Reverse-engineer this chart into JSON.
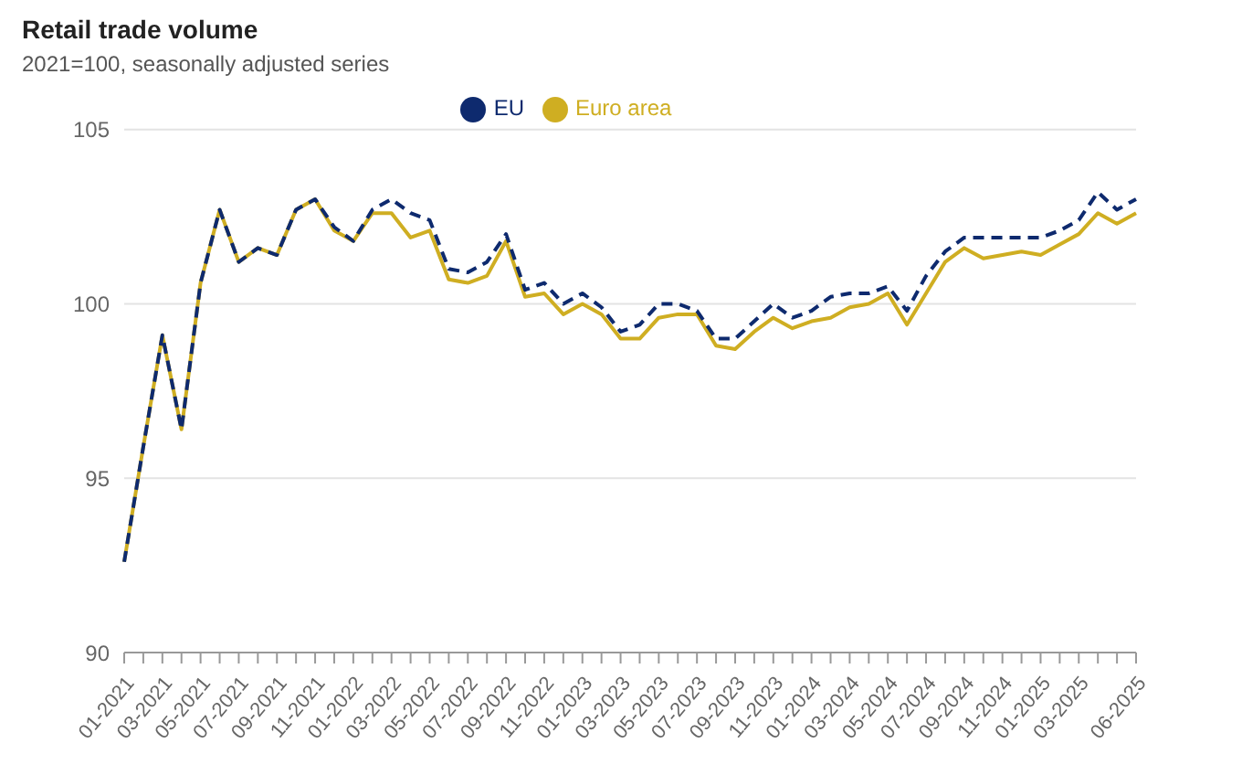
{
  "chart_data": {
    "type": "line",
    "title": "Retail trade volume",
    "subtitle": "2021=100, seasonally adjusted series",
    "categories": [
      "01-2021",
      null,
      "03-2021",
      null,
      "05-2021",
      null,
      "07-2021",
      null,
      "09-2021",
      null,
      "11-2021",
      null,
      "01-2022",
      null,
      "03-2022",
      null,
      "05-2022",
      null,
      "07-2022",
      null,
      "09-2022",
      null,
      "11-2022",
      null,
      "01-2023",
      null,
      "03-2023",
      null,
      "05-2023",
      null,
      "07-2023",
      null,
      "09-2023",
      null,
      "11-2023",
      null,
      "01-2024",
      null,
      "03-2024",
      null,
      "05-2024",
      null,
      "07-2024",
      null,
      "09-2024",
      null,
      "11-2024",
      null,
      "01-2025",
      null,
      "03-2025",
      null,
      null,
      "06-2025"
    ],
    "series": [
      {
        "name": "Euro area",
        "color": "#cfae22",
        "line_style": "solid",
        "values": [
          92.6,
          95.9,
          99.1,
          96.4,
          100.6,
          102.7,
          101.2,
          101.6,
          101.4,
          102.7,
          103.0,
          102.1,
          101.8,
          102.6,
          102.6,
          101.9,
          102.1,
          100.7,
          100.6,
          100.8,
          101.8,
          100.2,
          100.3,
          99.7,
          100.0,
          99.7,
          99.0,
          99.0,
          99.6,
          99.7,
          99.7,
          98.8,
          98.7,
          99.2,
          99.6,
          99.3,
          99.5,
          99.6,
          99.9,
          100.0,
          100.3,
          99.4,
          100.3,
          101.2,
          101.6,
          101.3,
          101.4,
          101.5,
          101.4,
          101.7,
          102.0,
          102.6,
          102.3,
          102.6
        ]
      },
      {
        "name": "EU",
        "color": "#0e2a6e",
        "line_style": "dashed",
        "values": [
          92.6,
          95.9,
          99.1,
          96.4,
          100.6,
          102.7,
          101.2,
          101.6,
          101.4,
          102.7,
          103.0,
          102.2,
          101.8,
          102.7,
          103.0,
          102.6,
          102.4,
          101.0,
          100.9,
          101.2,
          102.0,
          100.4,
          100.6,
          100.0,
          100.3,
          99.9,
          99.2,
          99.4,
          100.0,
          100.0,
          99.8,
          99.0,
          99.0,
          99.5,
          100.0,
          99.6,
          99.8,
          100.2,
          100.3,
          100.3,
          100.5,
          99.8,
          100.8,
          101.5,
          101.9,
          101.9,
          101.9,
          101.9,
          101.9,
          102.1,
          102.4,
          103.2,
          102.7,
          103.0
        ]
      }
    ],
    "ylim": [
      90,
      105
    ],
    "yticks": [
      90,
      95,
      100,
      105
    ],
    "grid": "y",
    "legend": "top",
    "marker": "none"
  }
}
